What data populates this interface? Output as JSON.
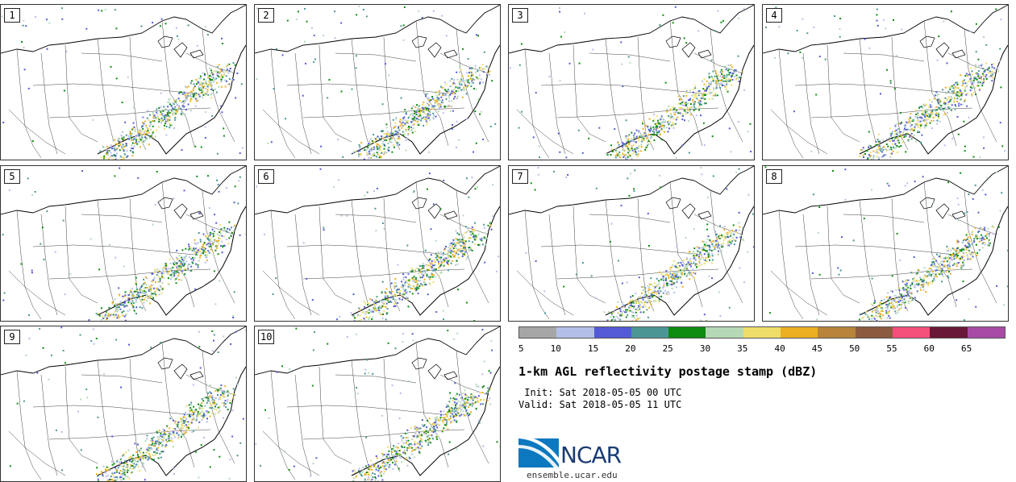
{
  "members": [
    "1",
    "2",
    "3",
    "4",
    "5",
    "6",
    "7",
    "8",
    "9",
    "10"
  ],
  "legend": {
    "colors": [
      "#a6a6a6",
      "#b4bfe8",
      "#545bd6",
      "#4b9695",
      "#0d8b10",
      "#b6d8b6",
      "#efdd6b",
      "#ebb021",
      "#b8843b",
      "#8c5a3f",
      "#f24f7a",
      "#6a1837",
      "#a84ba6"
    ],
    "ticks": [
      "5",
      "10",
      "15",
      "20",
      "25",
      "30",
      "35",
      "40",
      "45",
      "50",
      "55",
      "60",
      "65"
    ]
  },
  "title": "1-km AGL reflectivity postage stamp (dBZ)",
  "init": " Init: Sat 2018-05-05 00 UTC",
  "valid": "Valid: Sat 2018-05-05 11 UTC",
  "logo": {
    "text": "NCAR",
    "primary": "#0b78c0"
  },
  "site": "ensemble.ucar.edu"
}
